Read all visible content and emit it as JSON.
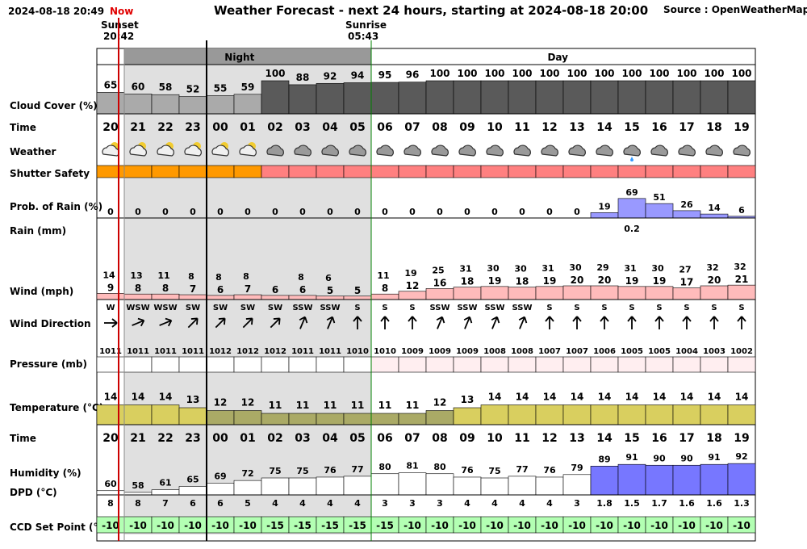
{
  "header": {
    "datetime": "2024-08-18 20:49",
    "title": "Weather Forecast - next 24 hours, starting at 2024-08-18 20:00",
    "source": "Source : OpenWeatherMap.org",
    "now_label": "Now",
    "sunset_label": "Sunset",
    "sunset_time": "20:42",
    "sunrise_label": "Sunrise",
    "sunrise_time": "05:43",
    "night_label": "Night",
    "day_label": "Day"
  },
  "row_labels": {
    "cloud": "Cloud Cover (%)",
    "time": "Time",
    "weather": "Weather",
    "shutter": "Shutter Safety",
    "prob": "Prob. of Rain (%)",
    "rain": "Rain (mm)",
    "wind": "Wind (mph)",
    "wind_dir": "Wind Direction",
    "pressure": "Pressure (mb)",
    "temp": "Temperature (°C)",
    "time2": "Time",
    "humidity": "Humidity (%)",
    "dpd": "DPD (°C)",
    "ccd": "CCD Set Point (°C)"
  },
  "colors": {
    "night_bg": "#e0e0e0",
    "cloud_light": "#aaaaaa",
    "cloud_dark": "#5a5a5a",
    "shutter_safe": "#ff9900",
    "shutter_unsafe": "#ff8080",
    "rain": "#9999ff",
    "wind": "#ffbbbb",
    "pressure": "#ffeef0",
    "temp_warm": "#d9cf5f",
    "temp_cool": "#aaaa66",
    "humidity_high": "#7777ff",
    "ccd": "#b3ffb3",
    "now_line": "#cc0000",
    "sunrise_line": "#008000"
  },
  "chart_data": {
    "type": "table",
    "hours": [
      "20",
      "21",
      "22",
      "23",
      "00",
      "01",
      "02",
      "03",
      "04",
      "05",
      "06",
      "07",
      "08",
      "09",
      "10",
      "11",
      "12",
      "13",
      "14",
      "15",
      "16",
      "17",
      "18",
      "19"
    ],
    "cloud_cover": [
      65,
      60,
      58,
      52,
      55,
      59,
      100,
      88,
      92,
      94,
      95,
      96,
      100,
      100,
      100,
      100,
      100,
      100,
      100,
      100,
      100,
      100,
      100,
      100
    ],
    "weather_icons": [
      "partly-cloudy-night-icon",
      "partly-cloudy-night-icon",
      "partly-cloudy-night-icon",
      "partly-cloudy-night-icon",
      "partly-cloudy-night-icon",
      "partly-cloudy-night-icon",
      "cloud-icon",
      "cloud-icon",
      "cloud-icon",
      "cloud-icon",
      "cloud-icon",
      "cloud-icon",
      "cloud-icon",
      "cloud-icon",
      "cloud-icon",
      "cloud-icon",
      "cloud-icon",
      "cloud-icon",
      "cloud-icon",
      "light-rain-icon",
      "cloud-icon",
      "cloud-icon",
      "cloud-icon",
      "cloud-icon"
    ],
    "shutter_safe": [
      true,
      true,
      true,
      true,
      true,
      true,
      false,
      false,
      false,
      false,
      false,
      false,
      false,
      false,
      false,
      false,
      false,
      false,
      false,
      false,
      false,
      false,
      false,
      false
    ],
    "prob_rain": [
      0,
      0,
      0,
      0,
      0,
      0,
      0,
      0,
      0,
      0,
      0,
      0,
      0,
      0,
      0,
      0,
      0,
      0,
      19,
      69,
      51,
      26,
      14,
      6
    ],
    "rain_mm": [
      "",
      "",
      "",
      "",
      "",
      "",
      "",
      "",
      "",
      "",
      "",
      "",
      "",
      "",
      "",
      "",
      "",
      "",
      "",
      "0.2",
      "",
      "",
      "",
      ""
    ],
    "wind_gust": [
      "14",
      "13",
      "11",
      "8",
      "8",
      "8",
      "",
      "8",
      "6",
      "",
      "11",
      "19",
      "25",
      "31",
      "30",
      "30",
      "31",
      "30",
      "29",
      "31",
      "30",
      "27",
      "32",
      "32"
    ],
    "wind_speed": [
      9,
      8,
      8,
      7,
      6,
      7,
      6,
      6,
      5,
      5,
      8,
      12,
      16,
      18,
      19,
      18,
      19,
      20,
      20,
      19,
      19,
      17,
      20,
      21
    ],
    "wind_dir": [
      "W",
      "WSW",
      "WSW",
      "SW",
      "SW",
      "SW",
      "SW",
      "SSW",
      "SSW",
      "S",
      "S",
      "S",
      "SSW",
      "SSW",
      "SSW",
      "SSW",
      "S",
      "S",
      "S",
      "S",
      "S",
      "S",
      "S",
      "S"
    ],
    "pressure": [
      1011,
      1011,
      1011,
      1011,
      1012,
      1012,
      1012,
      1011,
      1011,
      1010,
      1010,
      1009,
      1009,
      1009,
      1008,
      1008,
      1007,
      1007,
      1006,
      1005,
      1005,
      1004,
      1003,
      1002
    ],
    "temperature": [
      14,
      14,
      14,
      13,
      12,
      12,
      11,
      11,
      11,
      11,
      11,
      11,
      12,
      13,
      14,
      14,
      14,
      14,
      14,
      14,
      14,
      14,
      14,
      14
    ],
    "humidity": [
      60,
      58,
      61,
      65,
      69,
      72,
      75,
      75,
      76,
      77,
      80,
      81,
      80,
      76,
      75,
      77,
      76,
      79,
      89,
      91,
      90,
      90,
      91,
      92
    ],
    "dpd": [
      "8",
      "8",
      "7",
      "6",
      "6",
      "5",
      "4",
      "4",
      "4",
      "4",
      "3",
      "3",
      "3",
      "4",
      "4",
      "4",
      "4",
      "3",
      "1.8",
      "1.5",
      "1.7",
      "1.6",
      "1.6",
      "1.3"
    ],
    "ccd_set_point": [
      -10,
      -10,
      -10,
      -10,
      -10,
      -10,
      -15,
      -15,
      -15,
      -15,
      -15,
      -10,
      -10,
      -10,
      -10,
      -10,
      -10,
      -10,
      -10,
      -10,
      -10,
      -10,
      -10,
      -10
    ]
  }
}
